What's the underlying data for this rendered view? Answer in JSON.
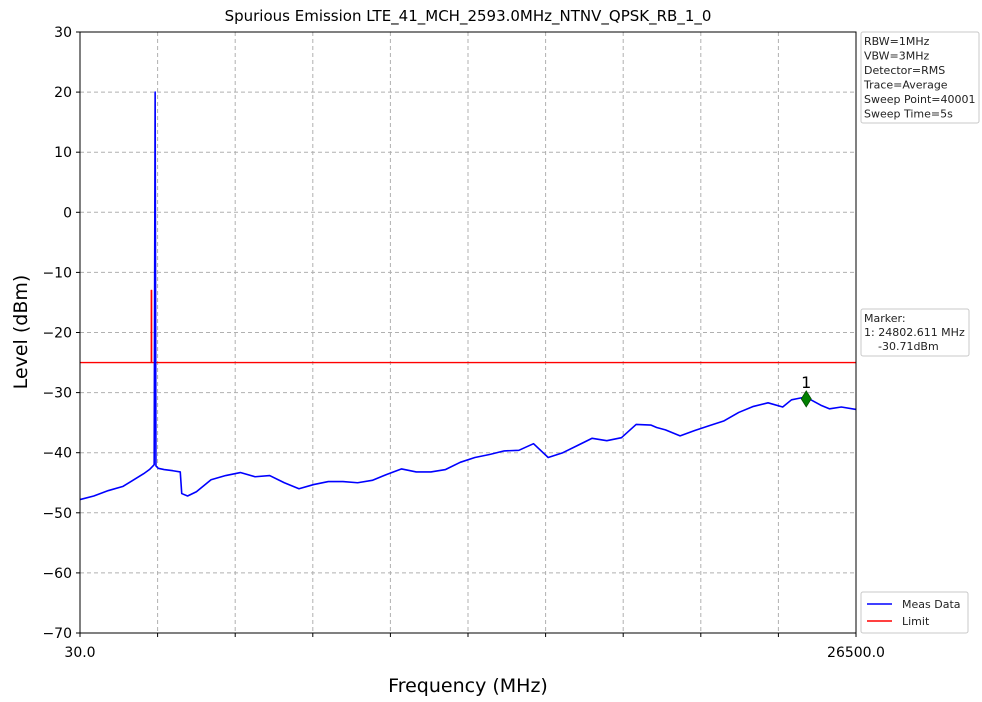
{
  "chart_data": {
    "type": "line",
    "title": "Spurious Emission LTE_41_MCH_2593.0MHz_NTNV_QPSK_RB_1_0",
    "xlabel": "Frequency (MHz)",
    "ylabel": "Level (dBm)",
    "xlim": [
      30.0,
      26500.0
    ],
    "ylim": [
      -70,
      30
    ],
    "x_tick_labels": [
      "30.0",
      "26500.0"
    ],
    "y_ticks": [
      30,
      20,
      10,
      0,
      -10,
      -20,
      -30,
      -40,
      -50,
      -60,
      -70
    ],
    "y_tick_labels": [
      "30",
      "20",
      "10",
      "0",
      "−10",
      "−20",
      "−30",
      "−40",
      "−50",
      "−60",
      "−70"
    ],
    "x_grid_divisions": 10,
    "grid": true,
    "legend_position": "bottom-right",
    "series": [
      {
        "name": "Meas Data",
        "color": "#0000ff",
        "x": [
          30,
          500,
          1000,
          1500,
          1800,
          2200,
          2400,
          2500,
          2560,
          2593,
          2620,
          2700,
          2900,
          3200,
          3450,
          3500,
          3700,
          4000,
          4500,
          5000,
          5500,
          6000,
          6500,
          7000,
          7500,
          8000,
          8500,
          9000,
          9500,
          10000,
          10500,
          11000,
          11500,
          12000,
          12500,
          13000,
          13500,
          14000,
          14500,
          15000,
          15500,
          16000,
          16500,
          17000,
          17500,
          18000,
          18500,
          19000,
          19500,
          19700,
          20000,
          20500,
          21000,
          21500,
          22000,
          22500,
          23000,
          23500,
          24000,
          24300,
          24500,
          24802.611,
          25000,
          25300,
          25600,
          26000,
          26500
        ],
        "y": [
          -47.8,
          -47.2,
          -46.3,
          -45.6,
          -44.7,
          -43.5,
          -42.8,
          -42.3,
          -42.0,
          20.0,
          -42.2,
          -42.6,
          -42.8,
          -43.0,
          -43.2,
          -46.8,
          -47.2,
          -46.5,
          -44.5,
          -43.8,
          -43.3,
          -44.0,
          -43.8,
          -45.0,
          -46.0,
          -45.3,
          -44.8,
          -44.8,
          -45.0,
          -44.6,
          -43.6,
          -42.7,
          -43.2,
          -43.2,
          -42.8,
          -41.6,
          -40.8,
          -40.3,
          -39.7,
          -39.6,
          -38.5,
          -40.8,
          -40.0,
          -38.8,
          -37.6,
          -38.0,
          -37.5,
          -35.3,
          -35.4,
          -35.8,
          -36.2,
          -37.2,
          -36.3,
          -35.5,
          -34.7,
          -33.3,
          -32.3,
          -31.7,
          -32.4,
          -31.2,
          -31.0,
          -30.71,
          -31.3,
          -32.1,
          -32.7,
          -32.4,
          -32.8
        ]
      },
      {
        "name": "Limit",
        "color": "#ff0000",
        "x": [
          30,
          2460,
          2460,
          2475,
          2475,
          26500
        ],
        "y": [
          -25,
          -25,
          -13,
          -13,
          -25,
          -25
        ]
      }
    ],
    "marker": {
      "label": "1",
      "x": 24802.611,
      "y": -30.71,
      "color": "#008000"
    },
    "info_box": [
      "RBW=1MHz",
      "VBW=3MHz",
      "Detector=RMS",
      "Trace=Average",
      "Sweep Point=40001",
      "Sweep Time=5s"
    ],
    "marker_box": [
      "Marker:",
      "1: 24802.611 MHz",
      "    -30.71dBm"
    ]
  }
}
